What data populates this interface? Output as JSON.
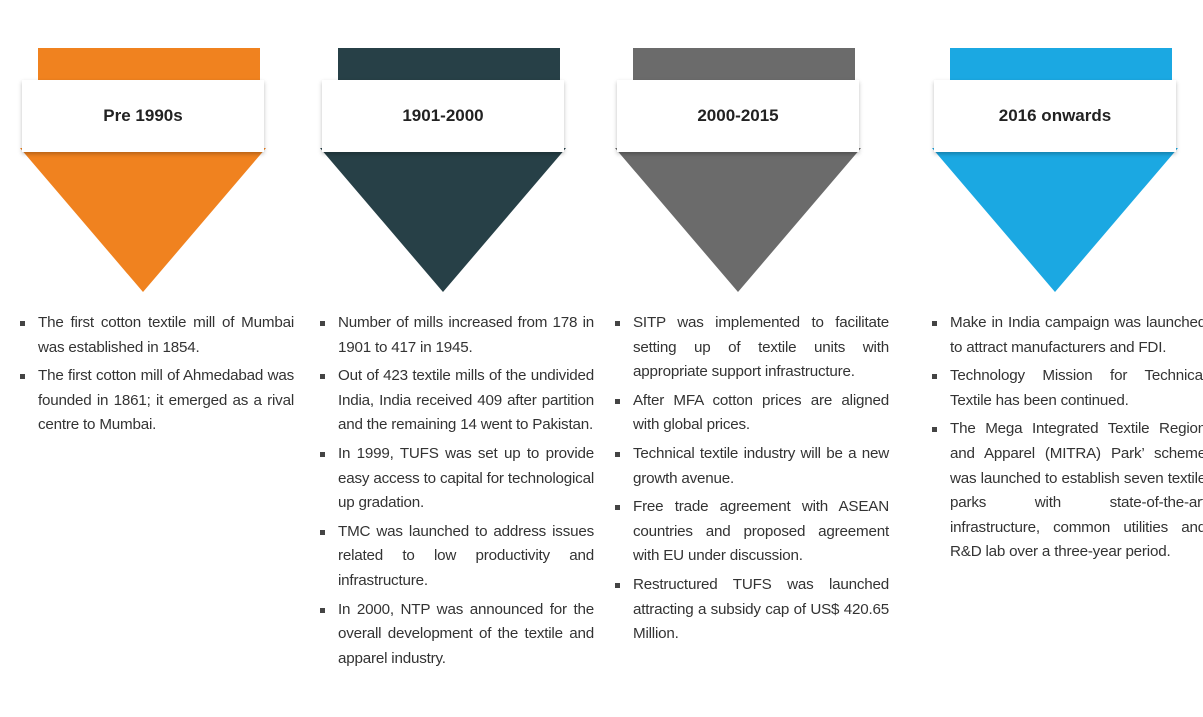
{
  "columns": [
    {
      "title": "Pre 1990s",
      "points": [
        "The first cotton textile mill of Mumbai was established in 1854.",
        "The first cotton mill of Ahmedabad was founded in 1861; it emerged as a rival centre to Mumbai."
      ]
    },
    {
      "title": "1901-2000",
      "points": [
        "Number of mills increased from 178 in 1901 to 417 in 1945.",
        "Out of 423 textile mills of the undivided India, India received 409 after partition and the remaining 14 went to Pakistan.",
        "In 1999, TUFS was set up to provide easy access to capital for technological up gradation.",
        "TMC was launched to address issues related to low productivity and infrastructure.",
        "In 2000, NTP was announced for the overall development of the textile and apparel industry."
      ]
    },
    {
      "title": "2000-2015",
      "points": [
        "SITP was implemented to facilitate setting up of textile units with appropriate support infrastructure.",
        "After MFA cotton prices are aligned with global prices.",
        "Technical textile industry will be a new growth avenue.",
        "Free trade agreement with ASEAN countries and proposed agreement with EU under discussion.",
        "Restructured TUFS was launched attracting a subsidy cap of US$ 420.65 Million."
      ]
    },
    {
      "title": "2016 onwards",
      "points": [
        "Make in India campaign was launched to attract manufacturers and FDI.",
        "Technology Mission for Technical Textile has been continued.",
        "The Mega Integrated Textile Region and Apparel (MITRA) Park’ scheme was launched to establish seven textile parks with state-of-the-art infrastructure, common utilities and R&D lab over a three-year period."
      ]
    }
  ]
}
